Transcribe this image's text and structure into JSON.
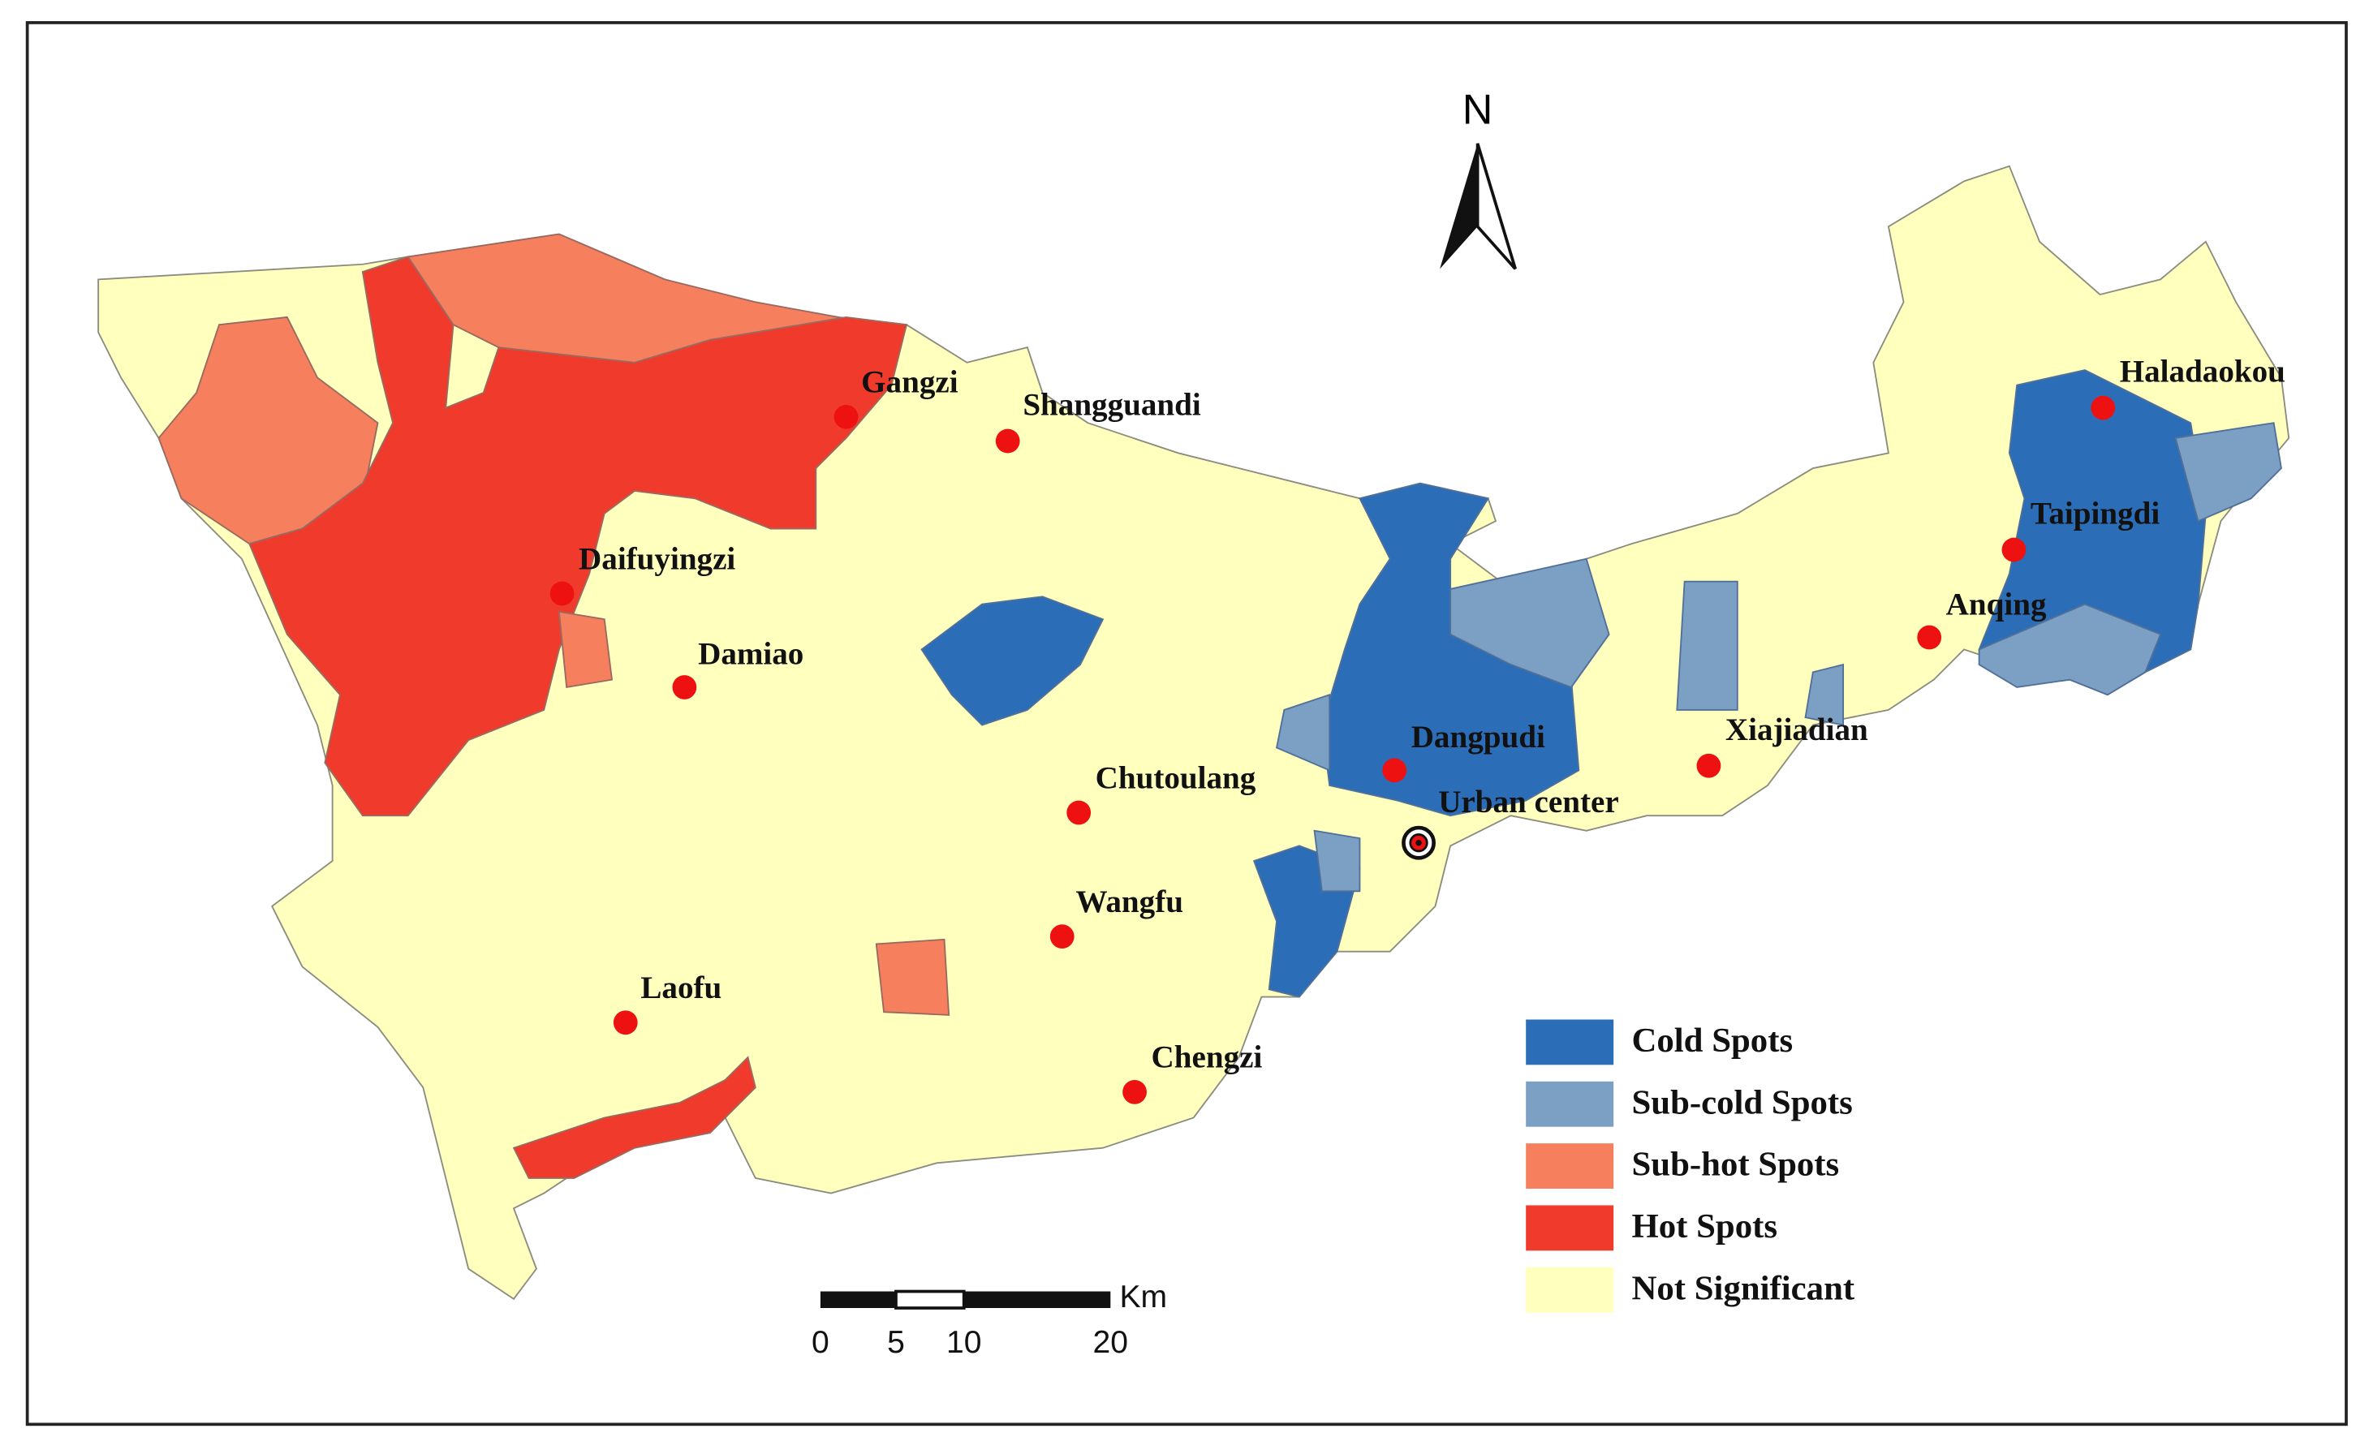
{
  "north": "N",
  "places": [
    {
      "label": "Gangzi"
    },
    {
      "label": "Shangguandi"
    },
    {
      "label": "Daifuyingzi"
    },
    {
      "label": "Damiao"
    },
    {
      "label": "Chutoulang"
    },
    {
      "label": "Dangpudi"
    },
    {
      "label": "Xiajiadian"
    },
    {
      "label": "Anqing"
    },
    {
      "label": "Taipingdi"
    },
    {
      "label": "Haladaokou"
    },
    {
      "label": "Wangfu"
    },
    {
      "label": "Laofu"
    },
    {
      "label": "Chengzi"
    }
  ],
  "urban_center": {
    "label": "Urban center"
  },
  "legend": [
    {
      "label": "Cold Spots",
      "color": "#2b6db6"
    },
    {
      "label": "Sub-cold Spots",
      "color": "#7c9fc4"
    },
    {
      "label": "Sub-hot Spots",
      "color": "#f6805e"
    },
    {
      "label": "Hot Spots",
      "color": "#f03a2b"
    },
    {
      "label": "Not Significant",
      "color": "#ffffbe"
    }
  ],
  "scale_bar": {
    "unit": "Km",
    "labels": [
      "0",
      "5",
      "10",
      "20"
    ]
  }
}
